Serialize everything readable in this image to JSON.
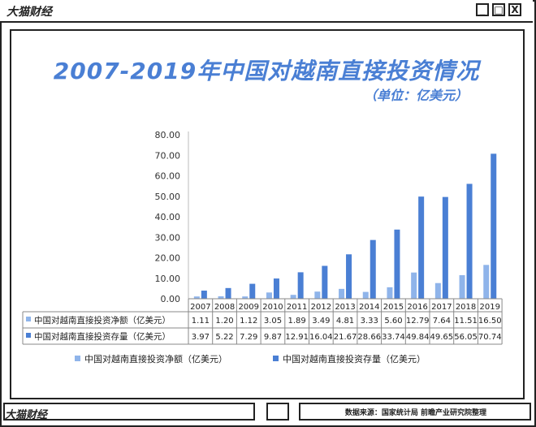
{
  "window": {
    "brand": "大猫财经",
    "minimize": "_",
    "maximize": "□",
    "close": "X"
  },
  "footer": {
    "brand": "大猫财经",
    "source": "数据来源：国家统计局 前瞻产业研究院整理"
  },
  "colors": {
    "accent": "#4a7fd4",
    "series_light": "#8fb4ea",
    "series_dark": "#4a7fd4"
  },
  "chart_data": {
    "type": "bar",
    "title": "2007-2019年中国对越南直接投资情况",
    "subtitle": "（单位：亿美元）",
    "categories": [
      "2007",
      "2008",
      "2009",
      "2010",
      "2011",
      "2012",
      "2013",
      "2014",
      "2015",
      "2016",
      "2017",
      "2018",
      "2019"
    ],
    "series": [
      {
        "name": "中国对越南直接投资净额（亿美元）",
        "values": [
          1.11,
          1.2,
          1.12,
          3.05,
          1.89,
          3.49,
          4.81,
          3.33,
          5.6,
          12.79,
          7.64,
          11.51,
          16.5
        ],
        "labels": [
          "1.11",
          "1.20",
          "1.12",
          "3.05",
          "1.89",
          "3.49",
          "4.81",
          "3.33",
          "5.60",
          "12.79",
          "7.64",
          "11.51",
          "16.50"
        ]
      },
      {
        "name": "中国对越南直接投资存量（亿美元）",
        "values": [
          3.97,
          5.22,
          7.29,
          9.87,
          12.91,
          16.04,
          21.67,
          28.66,
          33.74,
          49.84,
          49.65,
          56.05,
          70.74
        ],
        "labels": [
          "3.97",
          "5.22",
          "7.29",
          "9.87",
          "12.91",
          "16.04",
          "21.67",
          "28.66",
          "33.74",
          "49.84",
          "49.65",
          "56.05",
          "70.74"
        ]
      }
    ],
    "ylim": [
      0,
      80
    ],
    "yticks": [
      "0.00",
      "10.00",
      "20.00",
      "30.00",
      "40.00",
      "50.00",
      "60.00",
      "70.00",
      "80.00"
    ],
    "grid": false,
    "legend": "bottom",
    "table": true
  }
}
